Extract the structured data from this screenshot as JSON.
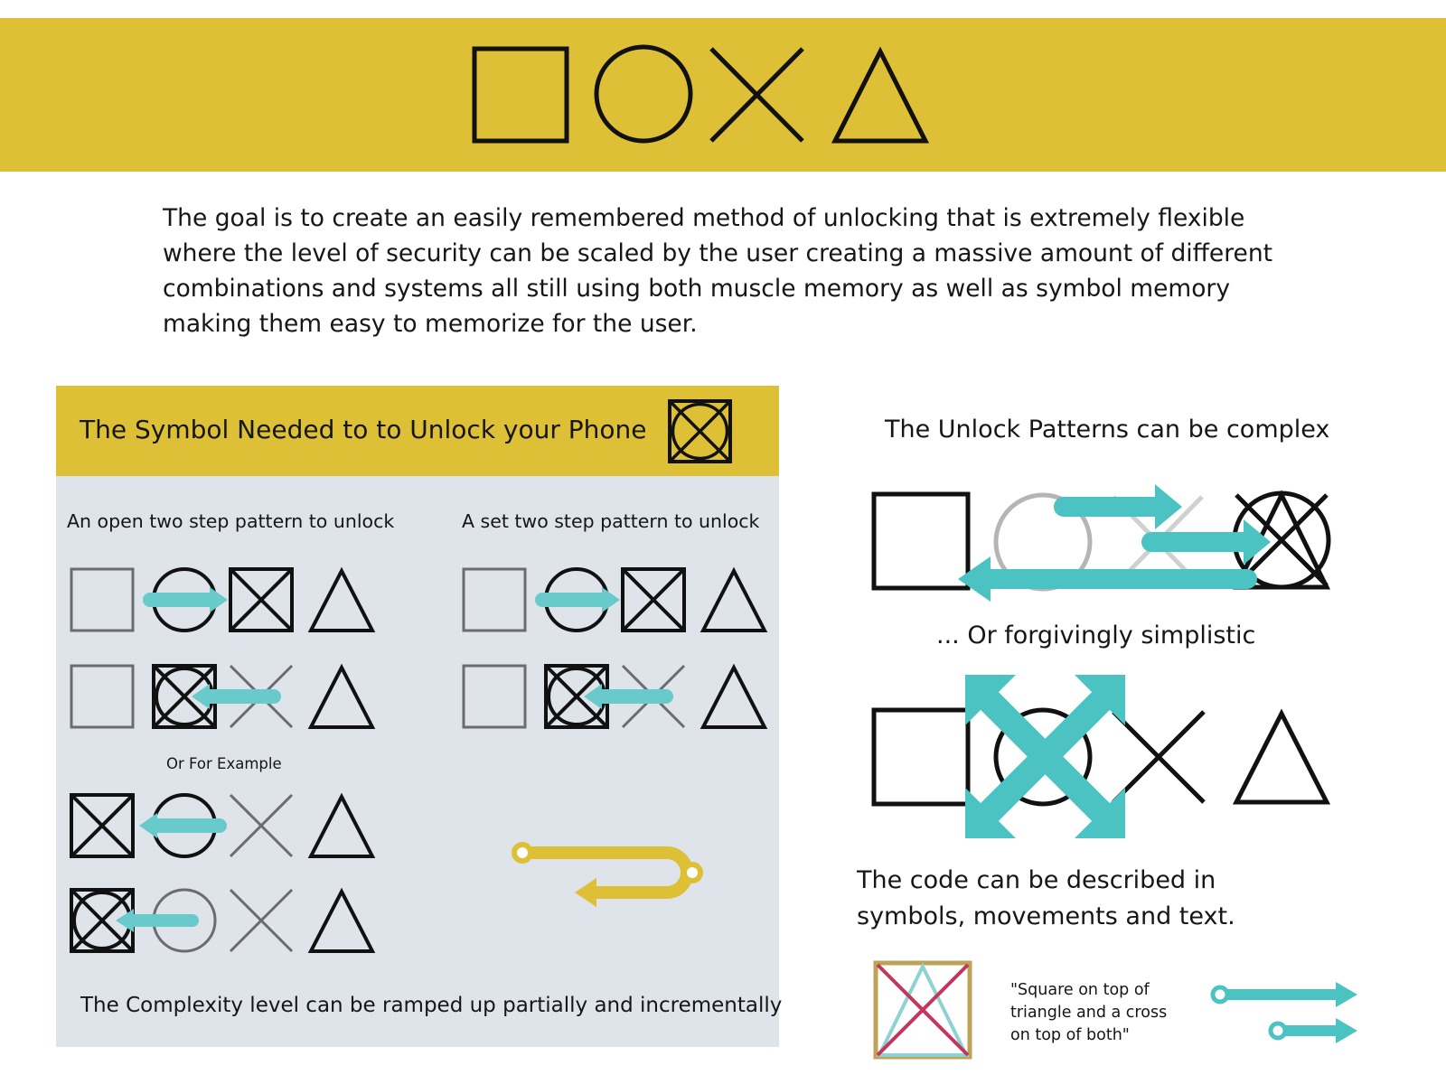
{
  "intro": {
    "text": "The goal is to create an easily remembered method of unlocking that is extremely flexible where the level of security can be scaled by the user creating a massive amount of different combinations and systems all still using both muscle memory as well as symbol memory making them easy to memorize for the user."
  },
  "panel": {
    "title": "The Symbol Needed to to Unlock your Phone",
    "open_label": "An open two step pattern to unlock",
    "set_label": "A set two step pattern to unlock",
    "example_label": "Or For Example",
    "footer": "The Complexity level can be ramped up partially and incrementally"
  },
  "right": {
    "complex_heading": "The Unlock Patterns can be complex",
    "simple_heading": "... Or forgivingly simplistic",
    "described_text": "The code can be described in symbols, movements and text.",
    "quote": "\"Square on top of triangle and a cross on top of both\""
  },
  "colors": {
    "accent_yellow": "#dec037",
    "panel_bg": "#dfe3ea",
    "teal": "#4bc3c3",
    "rose": "#c2375e",
    "gold_frame": "#bfa25a"
  },
  "icons": {
    "banner": [
      "square-icon",
      "circle-icon",
      "cross-icon",
      "triangle-icon"
    ]
  }
}
